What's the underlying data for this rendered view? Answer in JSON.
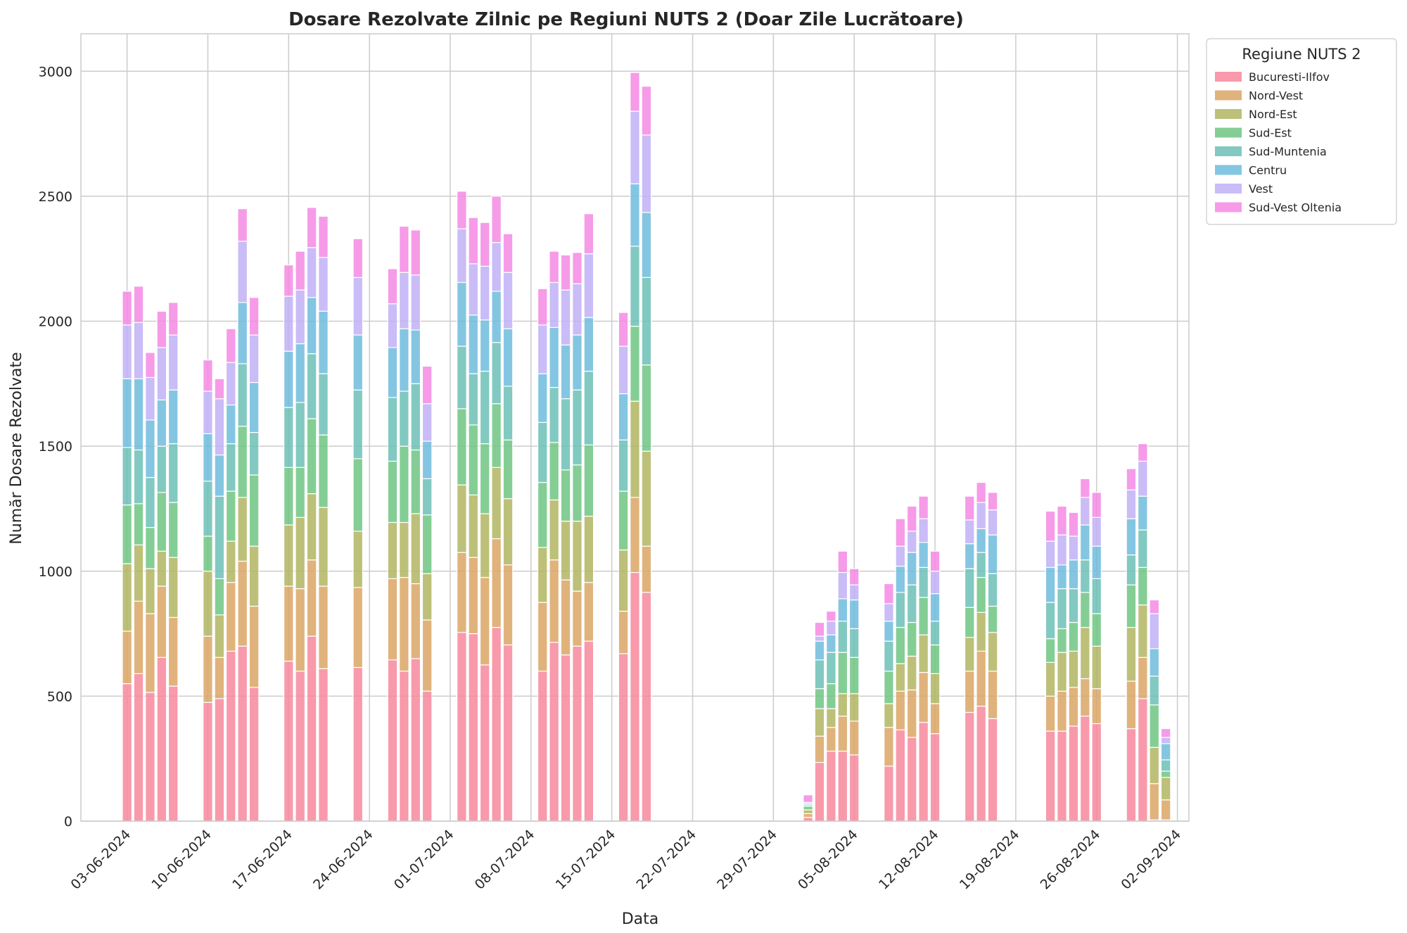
{
  "chart_data": {
    "type": "bar",
    "stacked": true,
    "title": "Dosare Rezolvate Zilnic pe Regiuni NUTS 2 (Doar Zile Lucrătoare)",
    "xlabel": "Data",
    "ylabel": "Număr Dosare Rezolvate",
    "ylim": [
      0,
      3150
    ],
    "yticks": [
      0,
      500,
      1000,
      1500,
      2000,
      2500,
      3000
    ],
    "x_axis": {
      "type": "date",
      "range": [
        "2024-05-30",
        "2024-09-03"
      ]
    },
    "xticks": [
      {
        "date": "2024-06-03",
        "label": "03-06-2024"
      },
      {
        "date": "2024-06-10",
        "label": "10-06-2024"
      },
      {
        "date": "2024-06-17",
        "label": "17-06-2024"
      },
      {
        "date": "2024-06-24",
        "label": "24-06-2024"
      },
      {
        "date": "2024-07-01",
        "label": "01-07-2024"
      },
      {
        "date": "2024-07-08",
        "label": "08-07-2024"
      },
      {
        "date": "2024-07-15",
        "label": "15-07-2024"
      },
      {
        "date": "2024-07-22",
        "label": "22-07-2024"
      },
      {
        "date": "2024-07-29",
        "label": "29-07-2024"
      },
      {
        "date": "2024-08-05",
        "label": "05-08-2024"
      },
      {
        "date": "2024-08-12",
        "label": "12-08-2024"
      },
      {
        "date": "2024-08-19",
        "label": "19-08-2024"
      },
      {
        "date": "2024-08-26",
        "label": "26-08-2024"
      },
      {
        "date": "2024-09-02",
        "label": "02-09-2024"
      }
    ],
    "grid": true,
    "legend": {
      "title": "Regiune NUTS 2",
      "placement": "outside-top-right"
    },
    "series": [
      {
        "name": "Bucuresti-Ilfov",
        "color": "#f7889c"
      },
      {
        "name": "Nord-Vest",
        "color": "#dba665"
      },
      {
        "name": "Nord-Est",
        "color": "#b1b561"
      },
      {
        "name": "Sud-Est",
        "color": "#6ec683"
      },
      {
        "name": "Sud-Muntenia",
        "color": "#6cc0b6"
      },
      {
        "name": "Centru",
        "color": "#6fbcdd"
      },
      {
        "name": "Vest",
        "color": "#c0b0f6"
      },
      {
        "name": "Sud-Vest Oltenia",
        "color": "#f58ae4"
      }
    ],
    "bars": [
      {
        "date": "2024-06-03",
        "values": [
          550,
          210,
          270,
          235,
          230,
          275,
          215,
          135
        ]
      },
      {
        "date": "2024-06-04",
        "values": [
          590,
          290,
          225,
          165,
          215,
          285,
          225,
          145
        ]
      },
      {
        "date": "2024-06-05",
        "values": [
          515,
          315,
          180,
          165,
          200,
          230,
          170,
          100
        ]
      },
      {
        "date": "2024-06-06",
        "values": [
          655,
          285,
          140,
          235,
          185,
          185,
          210,
          145
        ]
      },
      {
        "date": "2024-06-07",
        "values": [
          540,
          275,
          240,
          220,
          235,
          215,
          220,
          130
        ]
      },
      {
        "date": "2024-06-10",
        "values": [
          475,
          265,
          260,
          140,
          220,
          190,
          170,
          125
        ]
      },
      {
        "date": "2024-06-11",
        "values": [
          490,
          165,
          170,
          145,
          330,
          165,
          225,
          80
        ]
      },
      {
        "date": "2024-06-12",
        "values": [
          680,
          275,
          165,
          200,
          190,
          155,
          170,
          135
        ]
      },
      {
        "date": "2024-06-13",
        "values": [
          700,
          340,
          255,
          285,
          250,
          245,
          245,
          130
        ]
      },
      {
        "date": "2024-06-14",
        "values": [
          535,
          325,
          240,
          285,
          170,
          200,
          190,
          150
        ]
      },
      {
        "date": "2024-06-17",
        "values": [
          640,
          300,
          245,
          230,
          240,
          225,
          220,
          125
        ]
      },
      {
        "date": "2024-06-18",
        "values": [
          600,
          330,
          285,
          200,
          260,
          235,
          215,
          155
        ]
      },
      {
        "date": "2024-06-19",
        "values": [
          740,
          305,
          265,
          300,
          260,
          225,
          200,
          160
        ]
      },
      {
        "date": "2024-06-20",
        "values": [
          610,
          330,
          315,
          290,
          245,
          250,
          215,
          165
        ]
      },
      {
        "date": "2024-06-23",
        "values": [
          615,
          320,
          225,
          290,
          275,
          220,
          230,
          155
        ]
      },
      {
        "date": "2024-06-26",
        "values": [
          645,
          325,
          225,
          245,
          255,
          200,
          175,
          140
        ]
      },
      {
        "date": "2024-06-27",
        "values": [
          600,
          375,
          220,
          305,
          220,
          250,
          225,
          185
        ]
      },
      {
        "date": "2024-06-28",
        "values": [
          650,
          300,
          280,
          255,
          265,
          215,
          220,
          180
        ]
      },
      {
        "date": "2024-06-29",
        "values": [
          520,
          285,
          185,
          235,
          145,
          150,
          150,
          150
        ]
      },
      {
        "date": "2024-07-02",
        "values": [
          755,
          320,
          270,
          305,
          250,
          255,
          215,
          150
        ]
      },
      {
        "date": "2024-07-03",
        "values": [
          750,
          305,
          250,
          280,
          205,
          235,
          205,
          185
        ]
      },
      {
        "date": "2024-07-04",
        "values": [
          625,
          350,
          255,
          280,
          290,
          205,
          215,
          175
        ]
      },
      {
        "date": "2024-07-05",
        "values": [
          775,
          355,
          285,
          255,
          245,
          205,
          195,
          185
        ]
      },
      {
        "date": "2024-07-06",
        "values": [
          705,
          320,
          265,
          235,
          215,
          230,
          225,
          155
        ]
      },
      {
        "date": "2024-07-09",
        "values": [
          600,
          275,
          220,
          260,
          240,
          195,
          195,
          145
        ]
      },
      {
        "date": "2024-07-10",
        "values": [
          715,
          330,
          240,
          230,
          220,
          240,
          180,
          125
        ]
      },
      {
        "date": "2024-07-11",
        "values": [
          665,
          300,
          235,
          205,
          285,
          215,
          220,
          140
        ]
      },
      {
        "date": "2024-07-12",
        "values": [
          700,
          220,
          280,
          225,
          300,
          220,
          205,
          125
        ]
      },
      {
        "date": "2024-07-13",
        "values": [
          720,
          235,
          265,
          285,
          295,
          215,
          255,
          160
        ]
      },
      {
        "date": "2024-07-16",
        "values": [
          670,
          170,
          245,
          235,
          205,
          185,
          190,
          135
        ]
      },
      {
        "date": "2024-07-17",
        "values": [
          995,
          300,
          385,
          300,
          320,
          250,
          290,
          155
        ]
      },
      {
        "date": "2024-07-18",
        "values": [
          915,
          185,
          380,
          345,
          350,
          260,
          310,
          195
        ]
      },
      {
        "date": "2024-08-01",
        "values": [
          15,
          15,
          15,
          15,
          5,
          5,
          5,
          30
        ]
      },
      {
        "date": "2024-08-02",
        "values": [
          235,
          105,
          110,
          80,
          115,
          75,
          20,
          55
        ]
      },
      {
        "date": "2024-08-03",
        "values": [
          280,
          95,
          75,
          100,
          125,
          70,
          55,
          40
        ]
      },
      {
        "date": "2024-08-04",
        "values": [
          280,
          140,
          90,
          165,
          125,
          90,
          105,
          85
        ]
      },
      {
        "date": "2024-08-05",
        "values": [
          265,
          135,
          110,
          145,
          115,
          115,
          60,
          65
        ]
      },
      {
        "date": "2024-08-08",
        "values": [
          220,
          155,
          95,
          130,
          120,
          80,
          70,
          80
        ]
      },
      {
        "date": "2024-08-09",
        "values": [
          365,
          155,
          110,
          145,
          140,
          105,
          80,
          110
        ]
      },
      {
        "date": "2024-08-10",
        "values": [
          335,
          190,
          135,
          135,
          150,
          130,
          85,
          100
        ]
      },
      {
        "date": "2024-08-11",
        "values": [
          395,
          200,
          150,
          150,
          120,
          100,
          95,
          90
        ]
      },
      {
        "date": "2024-08-12",
        "values": [
          350,
          120,
          120,
          115,
          95,
          110,
          90,
          80
        ]
      },
      {
        "date": "2024-08-15",
        "values": [
          435,
          165,
          135,
          120,
          155,
          100,
          95,
          95
        ]
      },
      {
        "date": "2024-08-16",
        "values": [
          460,
          220,
          155,
          140,
          100,
          95,
          105,
          80
        ]
      },
      {
        "date": "2024-08-17",
        "values": [
          410,
          190,
          155,
          105,
          130,
          155,
          100,
          70
        ]
      },
      {
        "date": "2024-08-22",
        "values": [
          360,
          140,
          135,
          95,
          145,
          140,
          105,
          120
        ]
      },
      {
        "date": "2024-08-23",
        "values": [
          360,
          160,
          155,
          95,
          160,
          95,
          120,
          115
        ]
      },
      {
        "date": "2024-08-24",
        "values": [
          380,
          155,
          145,
          115,
          135,
          115,
          95,
          95
        ]
      },
      {
        "date": "2024-08-25",
        "values": [
          420,
          150,
          205,
          140,
          130,
          140,
          110,
          75
        ]
      },
      {
        "date": "2024-08-26",
        "values": [
          390,
          140,
          170,
          130,
          140,
          130,
          115,
          100
        ]
      },
      {
        "date": "2024-08-29",
        "values": [
          370,
          190,
          215,
          170,
          120,
          145,
          115,
          85
        ]
      },
      {
        "date": "2024-08-30",
        "values": [
          490,
          165,
          210,
          150,
          150,
          135,
          140,
          70
        ]
      },
      {
        "date": "2024-08-31",
        "values": [
          5,
          145,
          145,
          170,
          115,
          110,
          140,
          55
        ]
      },
      {
        "date": "2024-09-01",
        "values": [
          5,
          80,
          90,
          25,
          45,
          65,
          25,
          35
        ]
      }
    ]
  }
}
